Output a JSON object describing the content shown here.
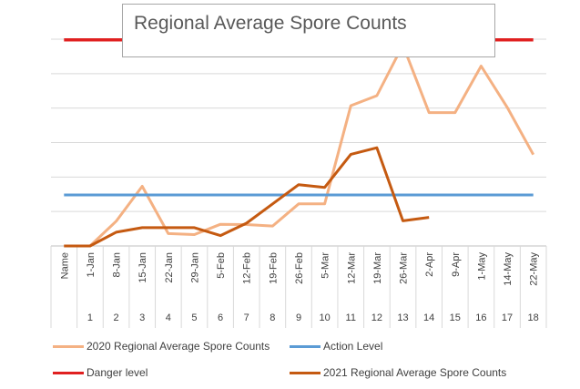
{
  "chart_data": {
    "type": "line",
    "title": "Regional Average Spore Counts",
    "categories": [
      "Name",
      "1-Jan",
      "8-Jan",
      "15-Jan",
      "22-Jan",
      "29-Jan",
      "5-Feb",
      "12-Feb",
      "19-Feb",
      "26-Feb",
      "5-Mar",
      "12-Mar",
      "19-Mar",
      "26-Mar",
      "2-Apr",
      "9-Apr",
      "1-May",
      "14-May",
      "22-May"
    ],
    "category_numbers": [
      "",
      "1",
      "2",
      "3",
      "4",
      "5",
      "6",
      "7",
      "8",
      "9",
      "10",
      "11",
      "12",
      "13",
      "14",
      "15",
      "16",
      "17",
      "18"
    ],
    "ylim": [
      0,
      6
    ],
    "grid": true,
    "series": [
      {
        "name": "2020 Regional Average Spore Counts",
        "color": "#f4b183",
        "width": 3,
        "values": [
          0,
          0,
          0.72,
          1.73,
          0.36,
          0.33,
          0.63,
          0.62,
          0.58,
          1.22,
          1.22,
          4.07,
          4.36,
          5.83,
          3.87,
          3.87,
          5.22,
          4.02,
          2.65
        ]
      },
      {
        "name": "Action Level",
        "color": "#5b9bd5",
        "width": 3,
        "values": [
          1.48,
          1.48,
          1.48,
          1.48,
          1.48,
          1.48,
          1.48,
          1.48,
          1.48,
          1.48,
          1.48,
          1.48,
          1.48,
          1.48,
          1.48,
          1.48,
          1.48,
          1.48,
          1.48
        ]
      },
      {
        "name": "Danger level",
        "color": "#e02020",
        "width": 3.5,
        "values": [
          5.98,
          5.98,
          5.98,
          5.98,
          5.98,
          5.98,
          5.98,
          5.98,
          5.98,
          5.98,
          5.98,
          5.98,
          5.98,
          5.98,
          5.98,
          5.98,
          5.98,
          5.98,
          5.98
        ]
      },
      {
        "name": "2021 Regional Average Spore Counts",
        "color": "#c55a11",
        "width": 3,
        "values": [
          0,
          0,
          0.4,
          0.53,
          0.53,
          0.53,
          0.3,
          0.66,
          1.22,
          1.78,
          1.7,
          2.66,
          2.85,
          0.73,
          0.83,
          null,
          null,
          null,
          null
        ]
      }
    ],
    "legend": [
      {
        "label": "2020 Regional Average Spore Counts",
        "color": "#f4b183"
      },
      {
        "label": "Action Level",
        "color": "#5b9bd5"
      },
      {
        "label": "Danger level",
        "color": "#e02020"
      },
      {
        "label": "2021 Regional Average Spore Counts",
        "color": "#c55a11"
      }
    ],
    "legend_placement": "bottom"
  }
}
